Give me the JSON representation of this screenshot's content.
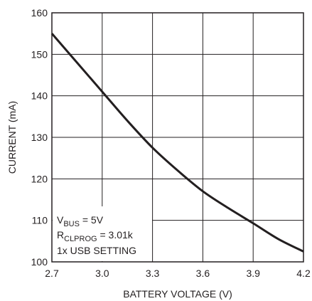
{
  "chart_data": {
    "type": "line",
    "title": "",
    "xlabel": "BATTERY VOLTAGE (V)",
    "ylabel": "CURRENT (mA)",
    "xlim": [
      2.7,
      4.2
    ],
    "ylim": [
      100,
      160
    ],
    "x_ticks": [
      2.7,
      3.0,
      3.3,
      3.6,
      3.9,
      4.2
    ],
    "x_tick_labels": [
      "2.7",
      "3.0",
      "3.3",
      "3.6",
      "3.9",
      "4.2"
    ],
    "y_ticks": [
      100,
      110,
      120,
      130,
      140,
      150,
      160
    ],
    "y_tick_labels": [
      "100",
      "110",
      "120",
      "130",
      "140",
      "150",
      "160"
    ],
    "grid": true,
    "legend": "none",
    "line_color": "#231f20",
    "series": [
      {
        "x": [
          2.7,
          2.85,
          3.0,
          3.15,
          3.3,
          3.45,
          3.6,
          3.75,
          3.9,
          4.05,
          4.2
        ],
        "values": [
          155.0,
          148.0,
          141.0,
          134.0,
          127.5,
          122.0,
          117.0,
          113.0,
          109.3,
          105.5,
          102.5
        ]
      }
    ],
    "annotation": {
      "line1_main": "V",
      "line1_sub": "BUS",
      "line1_rest": " = 5V",
      "line2_main": "R",
      "line2_sub": "CLPROG",
      "line2_rest": " = 3.01k",
      "line3": "1x USB SETTING"
    }
  }
}
